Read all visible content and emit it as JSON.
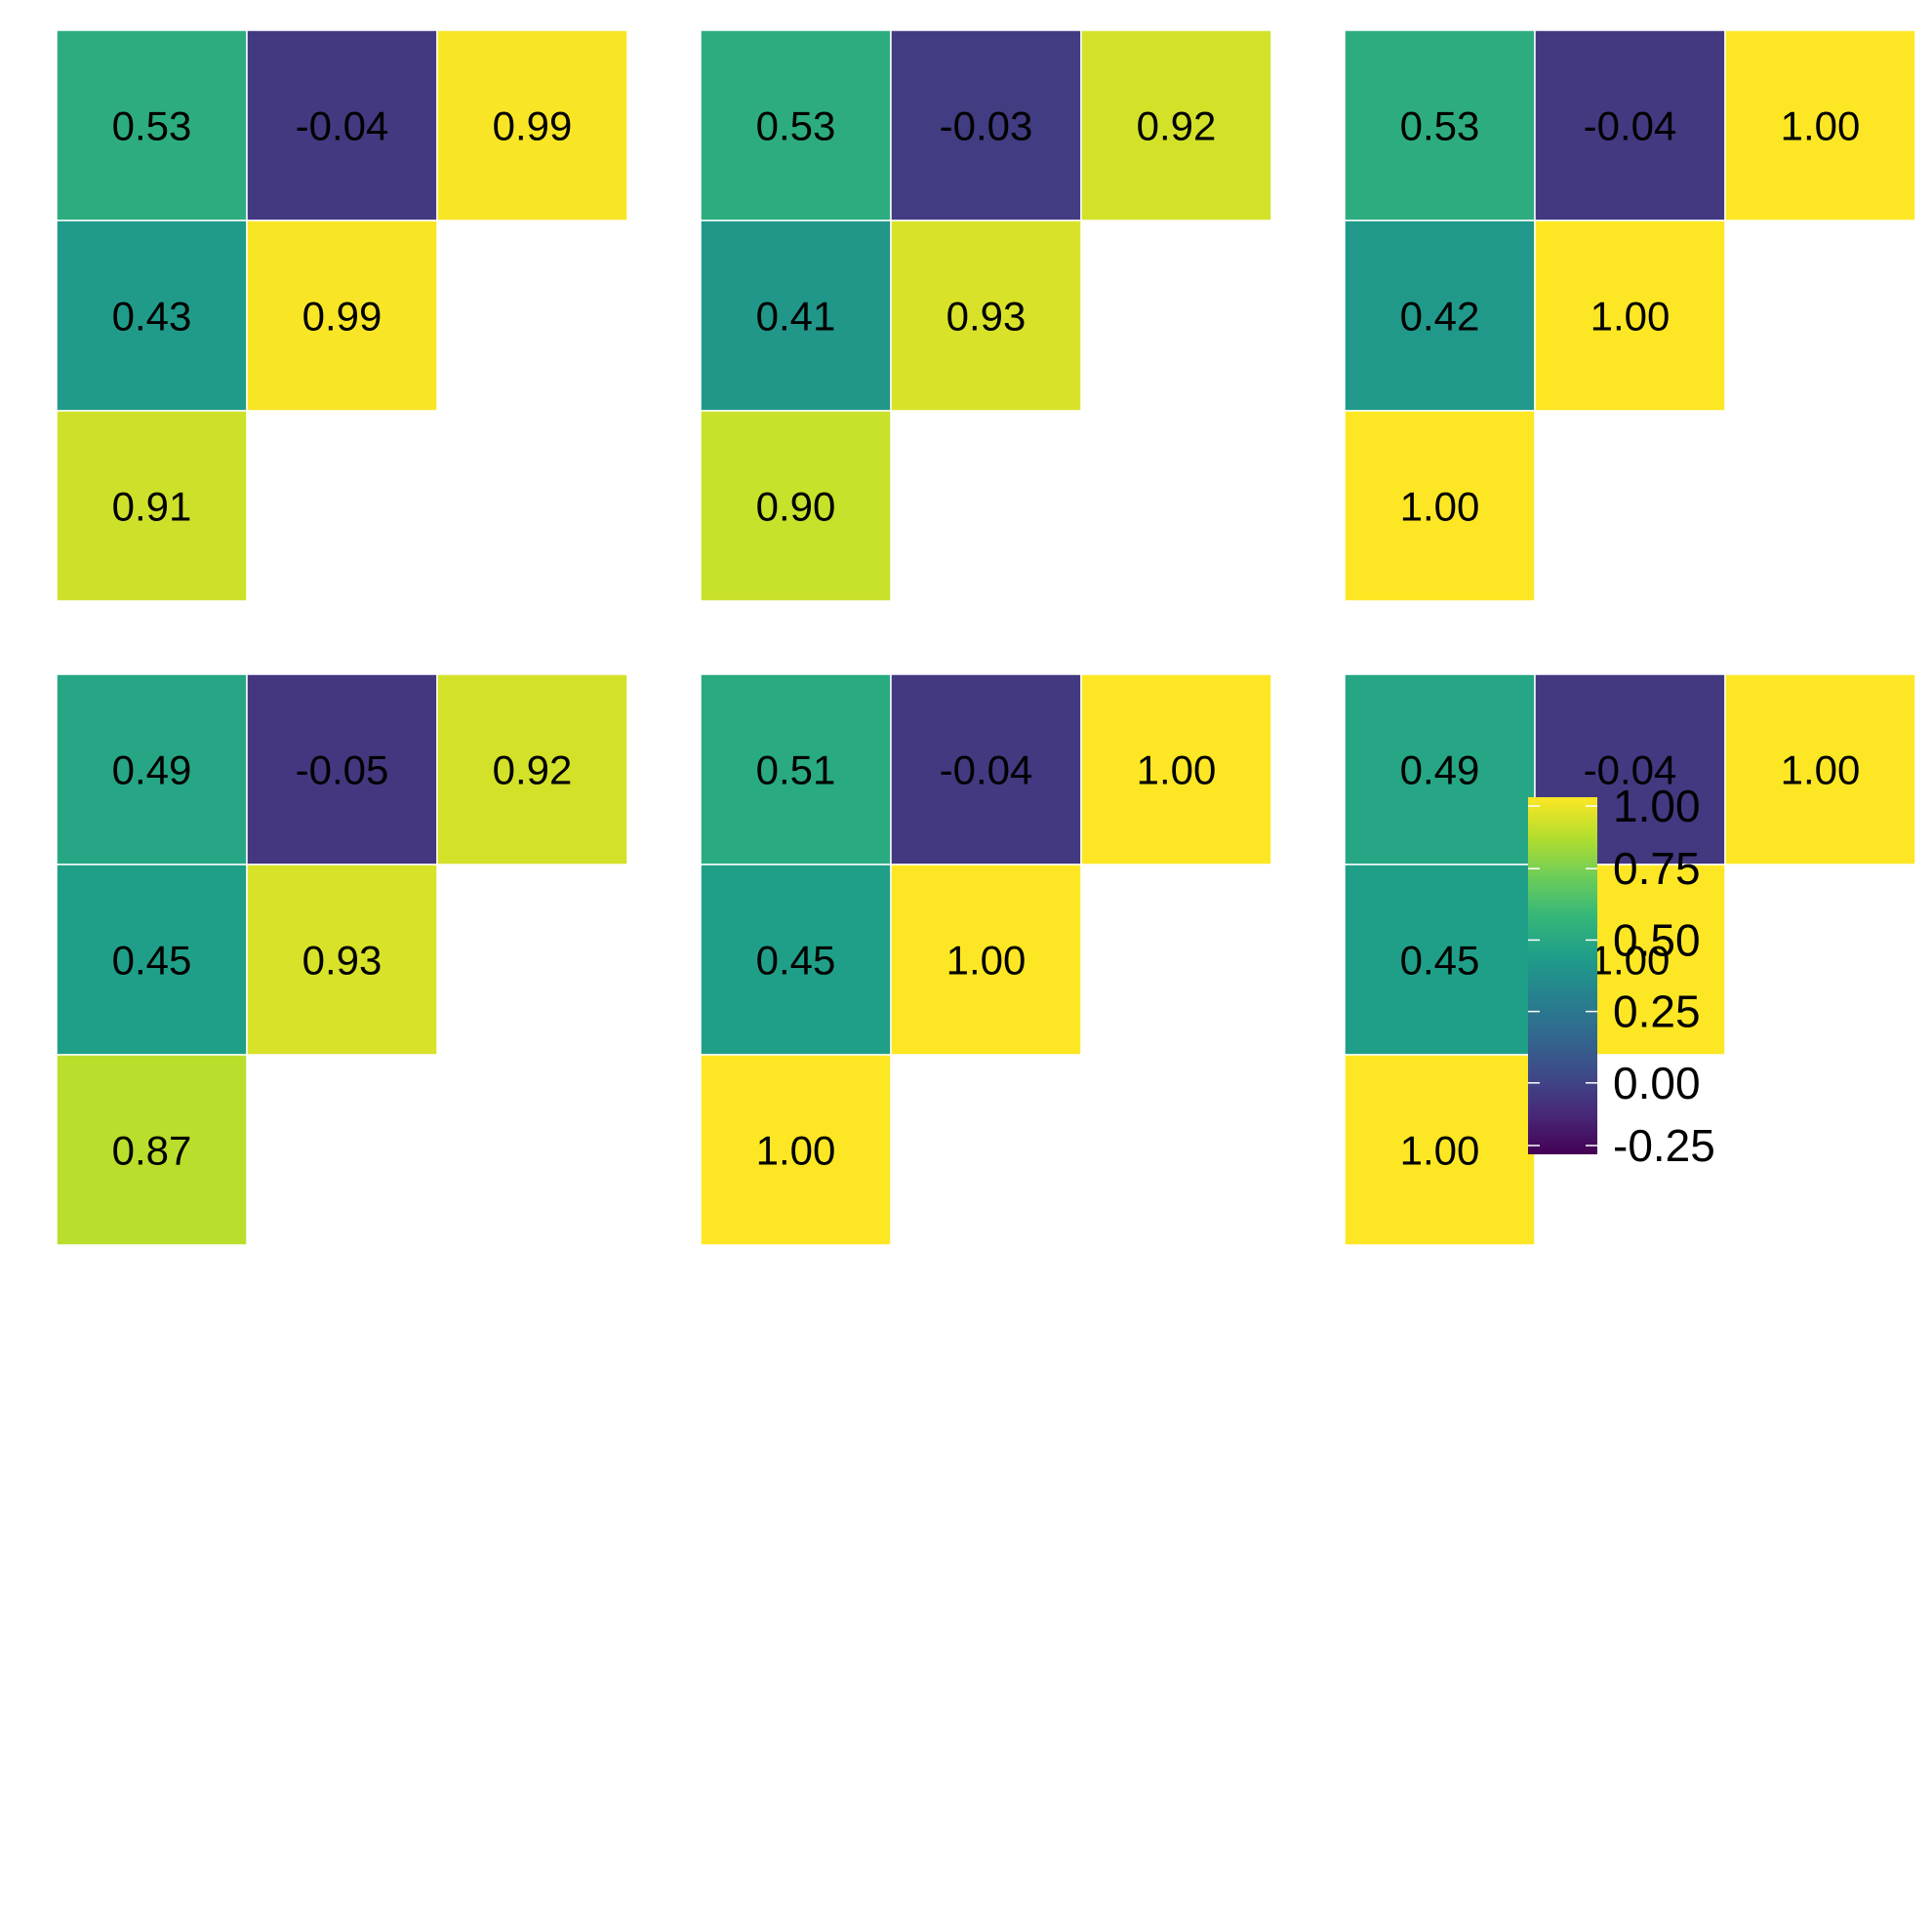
{
  "colorscale": {
    "name": "viridis",
    "min": -0.25,
    "max": 1.0,
    "stops": [
      "#440154",
      "#482878",
      "#3E4A89",
      "#31688E",
      "#26828E",
      "#1F9E89",
      "#35B779",
      "#6DCD59",
      "#B4DE2C",
      "#FDE725"
    ]
  },
  "chart_data": {
    "type": "heatmap",
    "layout": "grid of triangular correlation matrices, 3 columns",
    "grid_cols": 3,
    "panels": [
      {
        "rows": [
          [
            0.53,
            -0.04,
            0.99
          ],
          [
            0.43,
            0.99
          ],
          [
            0.91
          ]
        ]
      },
      {
        "rows": [
          [
            0.53,
            -0.03,
            0.92
          ],
          [
            0.41,
            0.93
          ],
          [
            0.9
          ]
        ]
      },
      {
        "rows": [
          [
            0.53,
            -0.04,
            1.0
          ],
          [
            0.42,
            1.0
          ],
          [
            1.0
          ]
        ]
      },
      {
        "rows": [
          [
            0.49,
            -0.05,
            0.92
          ],
          [
            0.45,
            0.93
          ],
          [
            0.87
          ]
        ]
      },
      {
        "rows": [
          [
            0.51,
            -0.04,
            1.0
          ],
          [
            0.45,
            1.0
          ],
          [
            1.0
          ]
        ]
      },
      {
        "rows": [
          [
            0.49,
            -0.04,
            1.0
          ],
          [
            0.45,
            1.0
          ],
          [
            1.0
          ]
        ]
      }
    ],
    "legend": {
      "placement": "right",
      "ticks": [
        1.0,
        0.75,
        0.5,
        0.25,
        0.0,
        -0.25
      ],
      "tick_labels": [
        "1.00",
        "0.75",
        "0.50",
        "0.25",
        "0.00",
        "-0.25"
      ]
    }
  }
}
